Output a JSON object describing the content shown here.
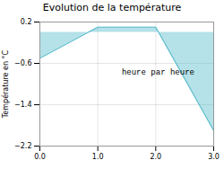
{
  "chart_data": {
    "type": "area",
    "title": "Evolution de la température",
    "ylabel": "Température en °C",
    "annotation": "heure par heure",
    "x": [
      0,
      1,
      2,
      3
    ],
    "values": [
      -0.5,
      0.1,
      0.1,
      -1.9
    ],
    "color": "#5bbccc",
    "xlim": [
      0,
      3
    ],
    "ylim": [
      -2.2,
      0.2
    ],
    "xticks": [
      0,
      1,
      2,
      3
    ],
    "yticks": [
      -2.2,
      -1.4,
      -0.6,
      0.2
    ],
    "grid": true
  }
}
